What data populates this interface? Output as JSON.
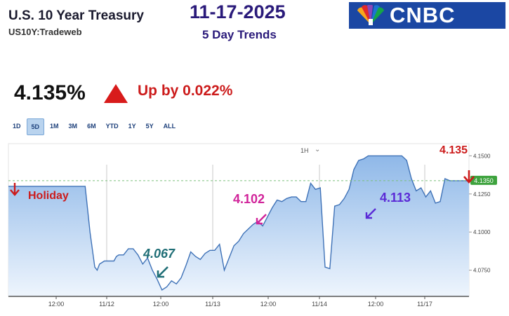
{
  "header": {
    "title": "U.S. 10 Year Treasury",
    "subtitle": "US10Y:Tradeweb",
    "date": "11-17-2025",
    "trend_label": "5 Day Trends",
    "logo_text": "CNBC"
  },
  "quote": {
    "price": "4.135%",
    "change_text": "Up by 0.022%",
    "up_color": "#d81b1b"
  },
  "ranges": {
    "items": [
      "1D",
      "5D",
      "1M",
      "3M",
      "6M",
      "YTD",
      "1Y",
      "5Y",
      "ALL"
    ],
    "active": "5D"
  },
  "interval": "1H",
  "chart_data": {
    "type": "area",
    "title": "",
    "xlabel": "",
    "ylabel": "",
    "x_ticks": [
      "12:00",
      "11/12",
      "12:00",
      "11/13",
      "12:00",
      "11/14",
      "12:00",
      "11/17"
    ],
    "y_ticks": [
      "4.0750",
      "4.1000",
      "4.1250",
      "4.1500"
    ],
    "ylim": [
      4.0578,
      4.158
    ],
    "grid": true,
    "current_value_label": "4.1350",
    "reference_value": 4.1337,
    "line_color": "#3f72b7",
    "fill_top": "#8fb8e8",
    "fill_bottom": "#eef5fd",
    "x": [
      0,
      16,
      17,
      18,
      18.5,
      19,
      20,
      21,
      22,
      22.5,
      23,
      24,
      25,
      26,
      26.5,
      27,
      28,
      29,
      30,
      31,
      32,
      33,
      34,
      35,
      36,
      37,
      38,
      39,
      40,
      41,
      42,
      43,
      44,
      45,
      46,
      47,
      48,
      49,
      50,
      51,
      52,
      53,
      54,
      55,
      56,
      57,
      58,
      59,
      60,
      61,
      62,
      63,
      64,
      65,
      66,
      67,
      68,
      69,
      70,
      71,
      72,
      73,
      74,
      75,
      76,
      77,
      78,
      79,
      80,
      81,
      82,
      83,
      84,
      85,
      86,
      87,
      88,
      89,
      90,
      91,
      92,
      93,
      94,
      95,
      96
    ],
    "values": [
      4.13,
      4.13,
      4.1,
      4.077,
      4.075,
      4.079,
      4.081,
      4.081,
      4.081,
      4.084,
      4.085,
      4.085,
      4.089,
      4.089,
      4.087,
      4.085,
      4.079,
      4.083,
      4.075,
      4.069,
      4.062,
      4.064,
      4.068,
      4.066,
      4.07,
      4.078,
      4.087,
      4.084,
      4.082,
      4.086,
      4.088,
      4.088,
      4.092,
      4.075,
      4.083,
      4.091,
      4.094,
      4.099,
      4.102,
      4.105,
      4.107,
      4.104,
      4.11,
      4.116,
      4.121,
      4.12,
      4.122,
      4.123,
      4.123,
      4.12,
      4.12,
      4.132,
      4.128,
      4.129,
      4.077,
      4.076,
      4.117,
      4.118,
      4.122,
      4.128,
      4.141,
      4.147,
      4.148,
      4.15,
      4.15,
      4.15,
      4.15,
      4.15,
      4.15,
      4.15,
      4.15,
      4.147,
      4.135,
      4.127,
      4.129,
      4.123,
      4.127,
      4.119,
      4.12,
      4.135,
      4.1337,
      4.1337,
      4.1337,
      4.1337,
      4.1337
    ],
    "annotations": [
      {
        "text": "Holiday",
        "color": "#cc1b1b"
      },
      {
        "text": "4.067",
        "color": "#1f6e76"
      },
      {
        "text": "4.102",
        "color": "#d1249a"
      },
      {
        "text": "4.113",
        "color": "#5b2ad6"
      },
      {
        "text": "4.135",
        "color": "#cc1b1b"
      }
    ]
  }
}
